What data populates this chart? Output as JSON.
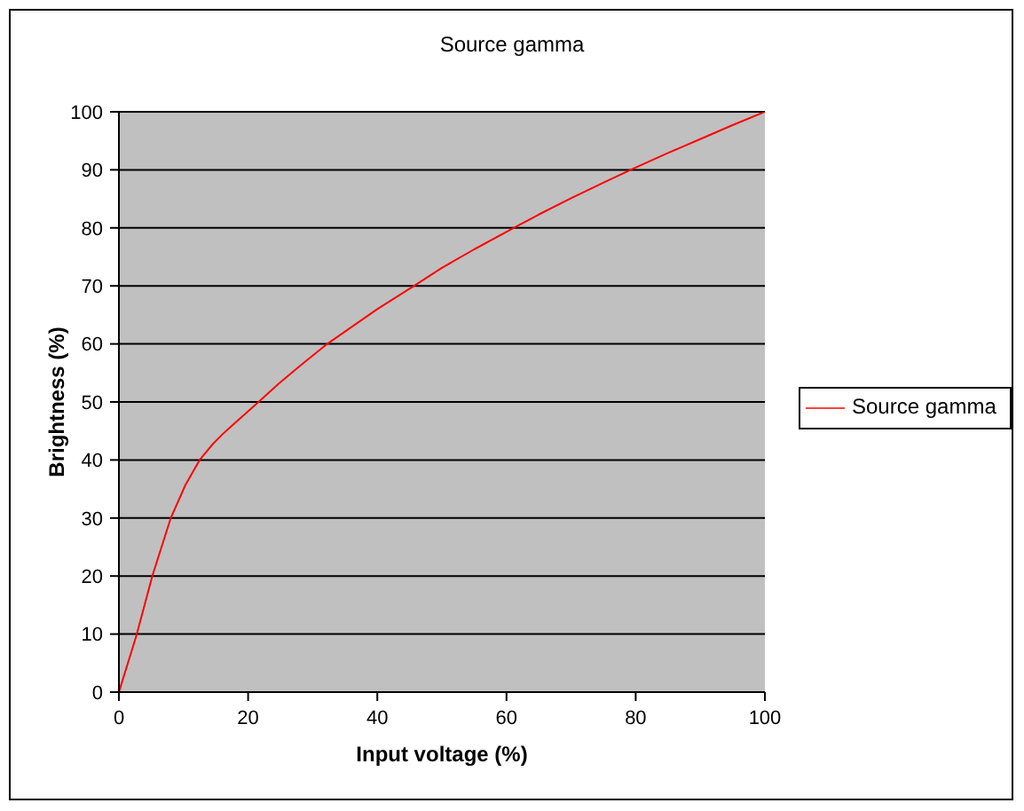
{
  "chart_data": {
    "type": "line",
    "title": "Source gamma",
    "xlabel": "Input voltage (%)",
    "ylabel": "Brightness (%)",
    "x": [
      0,
      2.7,
      5.2,
      8,
      10.3,
      12.5,
      14.5,
      16,
      18.5,
      21.5,
      24.8,
      28,
      32,
      36,
      40,
      45.7,
      50,
      55,
      60.8,
      65,
      70,
      75,
      79.6,
      85,
      90,
      95,
      100
    ],
    "series": [
      {
        "name": "Source gamma",
        "color": "#ff0000",
        "values": [
          0,
          9.7,
          20.1,
          29.9,
          35.7,
          40,
          42.7,
          44.4,
          46.9,
          49.9,
          53.2,
          56.2,
          59.8,
          62.9,
          66,
          70,
          73.1,
          76.3,
          79.8,
          82.3,
          85.1,
          87.8,
          90.2,
          92.9,
          95.3,
          97.7,
          100
        ]
      }
    ],
    "xlim": [
      0,
      100
    ],
    "xticks": [
      0,
      20,
      40,
      60,
      80,
      100
    ],
    "ylim": [
      0,
      100
    ],
    "yticks": [
      0,
      10,
      20,
      30,
      40,
      50,
      60,
      70,
      80,
      90,
      100
    ],
    "grid": "y",
    "legend": "right",
    "marker": "none",
    "line_style": "solid"
  }
}
